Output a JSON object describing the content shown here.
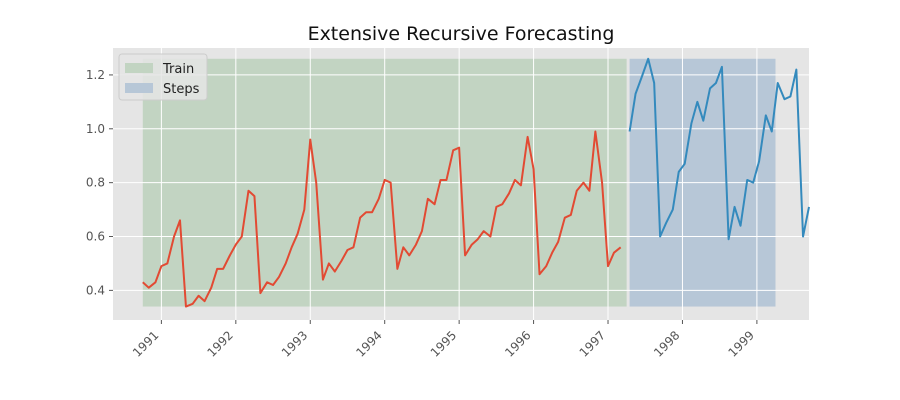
{
  "chart_data": {
    "type": "line",
    "title": "Extensive Recursive Forecasting",
    "xlabel": "",
    "ylabel": "",
    "xlim": [
      1990.35,
      1999.7
    ],
    "ylim": [
      0.29,
      1.3
    ],
    "x_ticks": [
      1991,
      1992,
      1993,
      1994,
      1995,
      1996,
      1997,
      1998,
      1999
    ],
    "x_tick_labels": [
      "1991",
      "1992",
      "1993",
      "1994",
      "1995",
      "1996",
      "1997",
      "1998",
      "1999"
    ],
    "y_ticks": [
      0.4,
      0.6,
      0.8,
      1.0,
      1.2
    ],
    "y_tick_labels": [
      "0.4",
      "0.6",
      "0.8",
      "1.0",
      "1.2"
    ],
    "grid": true,
    "legend_position": "top-left",
    "spans": [
      {
        "name": "Train",
        "x_start": 1990.75,
        "x_end": 1997.25,
        "y_start": 0.34,
        "y_end": 1.26,
        "color": "#c2d4c2"
      },
      {
        "name": "Steps",
        "x_start": 1997.29,
        "x_end": 1999.25,
        "y_start": 0.34,
        "y_end": 1.26,
        "color": "#b7c7d7"
      }
    ],
    "series": [
      {
        "color": "#e24a33",
        "points": [
          [
            1990.75,
            0.43
          ],
          [
            1990.83,
            0.41
          ],
          [
            1990.92,
            0.43
          ],
          [
            1991.0,
            0.49
          ],
          [
            1991.08,
            0.5
          ],
          [
            1991.17,
            0.6
          ],
          [
            1991.25,
            0.66
          ],
          [
            1991.33,
            0.34
          ],
          [
            1991.42,
            0.35
          ],
          [
            1991.5,
            0.38
          ],
          [
            1991.58,
            0.36
          ],
          [
            1991.67,
            0.41
          ],
          [
            1991.75,
            0.48
          ],
          [
            1991.83,
            0.48
          ],
          [
            1991.92,
            0.53
          ],
          [
            1992.0,
            0.57
          ],
          [
            1992.08,
            0.6
          ],
          [
            1992.17,
            0.77
          ],
          [
            1992.25,
            0.75
          ],
          [
            1992.33,
            0.39
          ],
          [
            1992.42,
            0.43
          ],
          [
            1992.5,
            0.42
          ],
          [
            1992.58,
            0.45
          ],
          [
            1992.67,
            0.5
          ],
          [
            1992.75,
            0.56
          ],
          [
            1992.83,
            0.61
          ],
          [
            1992.92,
            0.7
          ],
          [
            1993.0,
            0.96
          ],
          [
            1993.08,
            0.8
          ],
          [
            1993.17,
            0.44
          ],
          [
            1993.25,
            0.5
          ],
          [
            1993.33,
            0.47
          ],
          [
            1993.42,
            0.51
          ],
          [
            1993.5,
            0.55
          ],
          [
            1993.58,
            0.56
          ],
          [
            1993.67,
            0.67
          ],
          [
            1993.75,
            0.69
          ],
          [
            1993.83,
            0.69
          ],
          [
            1993.92,
            0.74
          ],
          [
            1994.0,
            0.81
          ],
          [
            1994.08,
            0.8
          ],
          [
            1994.17,
            0.48
          ],
          [
            1994.25,
            0.56
          ],
          [
            1994.33,
            0.53
          ],
          [
            1994.42,
            0.57
          ],
          [
            1994.5,
            0.62
          ],
          [
            1994.58,
            0.74
          ],
          [
            1994.67,
            0.72
          ],
          [
            1994.75,
            0.81
          ],
          [
            1994.83,
            0.81
          ],
          [
            1994.92,
            0.92
          ],
          [
            1995.0,
            0.93
          ],
          [
            1995.08,
            0.53
          ],
          [
            1995.17,
            0.57
          ],
          [
            1995.25,
            0.59
          ],
          [
            1995.33,
            0.62
          ],
          [
            1995.42,
            0.6
          ],
          [
            1995.5,
            0.71
          ],
          [
            1995.58,
            0.72
          ],
          [
            1995.67,
            0.76
          ],
          [
            1995.75,
            0.81
          ],
          [
            1995.83,
            0.79
          ],
          [
            1995.92,
            0.97
          ],
          [
            1996.0,
            0.85
          ],
          [
            1996.08,
            0.46
          ],
          [
            1996.17,
            0.49
          ],
          [
            1996.25,
            0.54
          ],
          [
            1996.33,
            0.58
          ],
          [
            1996.42,
            0.67
          ],
          [
            1996.5,
            0.68
          ],
          [
            1996.58,
            0.77
          ],
          [
            1996.67,
            0.8
          ],
          [
            1996.75,
            0.77
          ],
          [
            1996.83,
            0.99
          ],
          [
            1996.92,
            0.8
          ],
          [
            1997.0,
            0.49
          ],
          [
            1997.08,
            0.54
          ],
          [
            1997.17,
            0.56
          ]
        ]
      },
      {
        "color": "#348abd",
        "points": [
          [
            1997.29,
            0.99
          ],
          [
            1997.37,
            1.13
          ],
          [
            1997.45,
            1.19
          ],
          [
            1997.54,
            1.26
          ],
          [
            1997.62,
            1.17
          ],
          [
            1997.7,
            0.6
          ],
          [
            1997.78,
            0.65
          ],
          [
            1997.87,
            0.7
          ],
          [
            1997.95,
            0.84
          ],
          [
            1998.03,
            0.87
          ],
          [
            1998.12,
            1.02
          ],
          [
            1998.2,
            1.1
          ],
          [
            1998.28,
            1.03
          ],
          [
            1998.37,
            1.15
          ],
          [
            1998.45,
            1.17
          ],
          [
            1998.53,
            1.23
          ],
          [
            1998.62,
            0.59
          ],
          [
            1998.7,
            0.71
          ],
          [
            1998.78,
            0.64
          ],
          [
            1998.87,
            0.81
          ],
          [
            1998.95,
            0.8
          ],
          [
            1999.03,
            0.88
          ],
          [
            1999.12,
            1.05
          ],
          [
            1999.2,
            0.99
          ],
          [
            1999.28,
            1.17
          ],
          [
            1999.37,
            1.11
          ],
          [
            1999.45,
            1.12
          ],
          [
            1999.53,
            1.22
          ],
          [
            1999.62,
            0.6
          ],
          [
            1999.7,
            0.71
          ]
        ]
      }
    ],
    "legend": [
      {
        "label": "Train",
        "color": "#c2d4c2"
      },
      {
        "label": "Steps",
        "color": "#b7c7d7"
      }
    ]
  }
}
